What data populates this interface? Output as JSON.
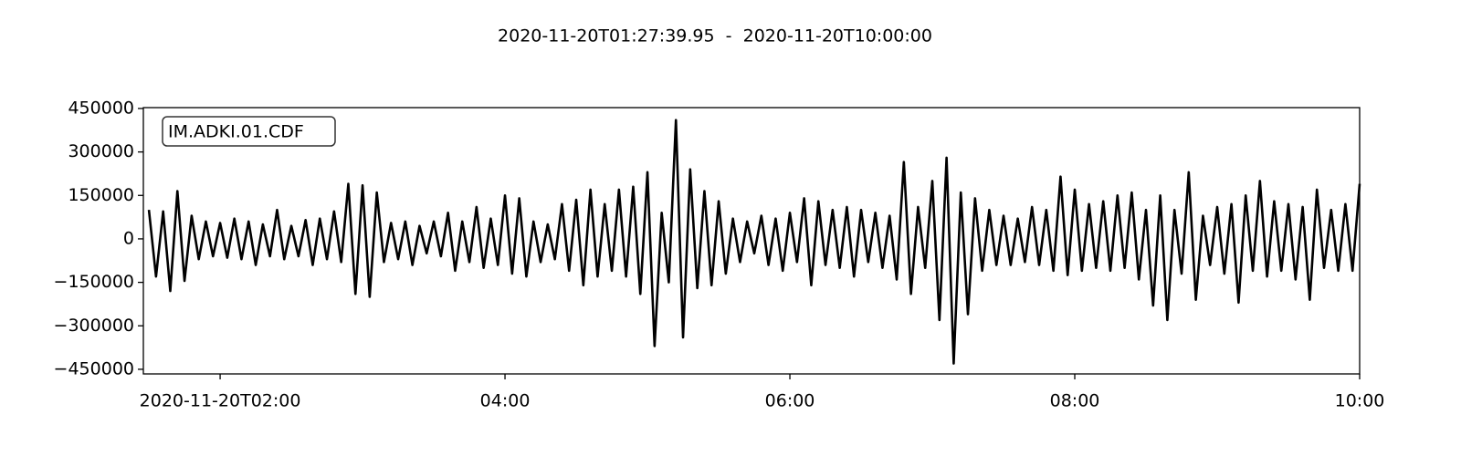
{
  "chart_data": {
    "type": "line",
    "title": "2020-11-20T01:27:39.95  -  2020-11-20T10:00:00",
    "x": [
      1.5,
      1.55,
      1.6,
      1.65,
      1.7,
      1.75,
      1.8,
      1.85,
      1.9,
      1.95,
      2.0,
      2.05,
      2.1,
      2.15,
      2.2,
      2.25,
      2.3,
      2.35,
      2.4,
      2.45,
      2.5,
      2.55,
      2.6,
      2.65,
      2.7,
      2.75,
      2.8,
      2.85,
      2.9,
      2.95,
      3.0,
      3.05,
      3.1,
      3.15,
      3.2,
      3.25,
      3.3,
      3.35,
      3.4,
      3.45,
      3.5,
      3.55,
      3.6,
      3.65,
      3.7,
      3.75,
      3.8,
      3.85,
      3.9,
      3.95,
      4.0,
      4.05,
      4.1,
      4.15,
      4.2,
      4.25,
      4.3,
      4.35,
      4.4,
      4.45,
      4.5,
      4.55,
      4.6,
      4.65,
      4.7,
      4.75,
      4.8,
      4.85,
      4.9,
      4.95,
      5.0,
      5.05,
      5.1,
      5.15,
      5.2,
      5.25,
      5.3,
      5.35,
      5.4,
      5.45,
      5.5,
      5.55,
      5.6,
      5.65,
      5.7,
      5.75,
      5.8,
      5.85,
      5.9,
      5.95,
      6.0,
      6.05,
      6.1,
      6.15,
      6.2,
      6.25,
      6.3,
      6.35,
      6.4,
      6.45,
      6.5,
      6.55,
      6.6,
      6.65,
      6.7,
      6.75,
      6.8,
      6.85,
      6.9,
      6.95,
      7.0,
      7.05,
      7.1,
      7.15,
      7.2,
      7.25,
      7.3,
      7.35,
      7.4,
      7.45,
      7.5,
      7.55,
      7.6,
      7.65,
      7.7,
      7.75,
      7.8,
      7.85,
      7.9,
      7.95,
      8.0,
      8.05,
      8.1,
      8.15,
      8.2,
      8.25,
      8.3,
      8.35,
      8.4,
      8.45,
      8.5,
      8.55,
      8.6,
      8.65,
      8.7,
      8.75,
      8.8,
      8.85,
      8.9,
      8.95,
      9.0,
      9.05,
      9.1,
      9.15,
      9.2,
      9.25,
      9.3,
      9.35,
      9.4,
      9.45,
      9.5,
      9.55,
      9.6,
      9.65,
      9.7,
      9.75,
      9.8,
      9.85,
      9.9,
      9.95,
      10.0
    ],
    "series": [
      {
        "name": "IM.ADKI.01.CDF",
        "color": "#000000",
        "values": [
          100000,
          -130000,
          95000,
          -180000,
          165000,
          -145000,
          80000,
          -70000,
          60000,
          -60000,
          55000,
          -65000,
          70000,
          -70000,
          60000,
          -90000,
          50000,
          -60000,
          100000,
          -70000,
          45000,
          -60000,
          65000,
          -90000,
          70000,
          -70000,
          95000,
          -80000,
          190000,
          -190000,
          185000,
          -200000,
          160000,
          -80000,
          55000,
          -70000,
          60000,
          -90000,
          45000,
          -50000,
          60000,
          -60000,
          90000,
          -110000,
          60000,
          -80000,
          110000,
          -100000,
          70000,
          -90000,
          150000,
          -120000,
          140000,
          -130000,
          60000,
          -80000,
          50000,
          -70000,
          120000,
          -110000,
          135000,
          -160000,
          170000,
          -130000,
          120000,
          -110000,
          170000,
          -130000,
          180000,
          -190000,
          230000,
          -370000,
          90000,
          -150000,
          410000,
          -340000,
          240000,
          -170000,
          165000,
          -160000,
          130000,
          -120000,
          70000,
          -80000,
          60000,
          -50000,
          80000,
          -90000,
          70000,
          -110000,
          90000,
          -80000,
          140000,
          -160000,
          130000,
          -90000,
          100000,
          -100000,
          110000,
          -130000,
          100000,
          -80000,
          90000,
          -100000,
          80000,
          -140000,
          265000,
          -190000,
          110000,
          -100000,
          200000,
          -280000,
          280000,
          -430000,
          160000,
          -260000,
          140000,
          -110000,
          100000,
          -90000,
          80000,
          -90000,
          70000,
          -80000,
          110000,
          -90000,
          100000,
          -110000,
          215000,
          -125000,
          170000,
          -110000,
          120000,
          -100000,
          130000,
          -110000,
          150000,
          -100000,
          160000,
          -140000,
          100000,
          -230000,
          150000,
          -280000,
          100000,
          -120000,
          230000,
          -210000,
          80000,
          -90000,
          110000,
          -120000,
          120000,
          -220000,
          150000,
          -110000,
          200000,
          -130000,
          130000,
          -110000,
          120000,
          -140000,
          110000,
          -210000,
          170000,
          -100000,
          100000,
          -110000,
          120000,
          -110000,
          190000
        ]
      }
    ],
    "xlim": [
      1.4611,
      10.0
    ],
    "xticks": [
      {
        "value": 2,
        "label": "2020-11-20T02:00"
      },
      {
        "value": 4,
        "label": "04:00"
      },
      {
        "value": 6,
        "label": "06:00"
      },
      {
        "value": 8,
        "label": "08:00"
      },
      {
        "value": 10,
        "label": "10:00"
      }
    ],
    "ylim": [
      -466000,
      453000
    ],
    "yticks": [
      {
        "value": -450000,
        "label": "−450000"
      },
      {
        "value": -300000,
        "label": "−300000"
      },
      {
        "value": -150000,
        "label": "−150000"
      },
      0,
      150000,
      300000,
      450000
    ]
  }
}
